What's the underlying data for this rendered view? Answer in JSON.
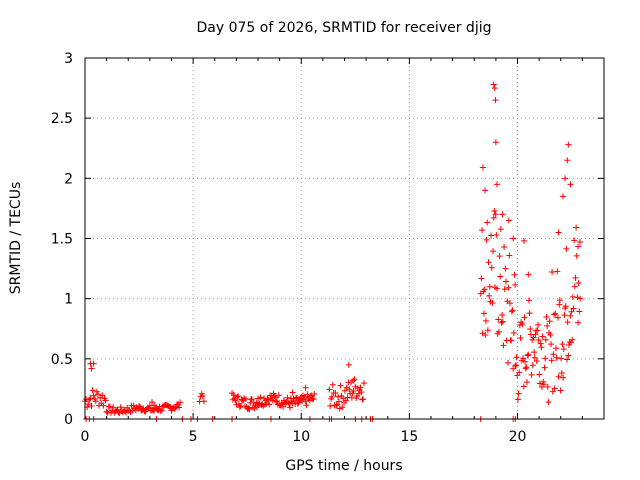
{
  "chart_data": {
    "type": "scatter",
    "title": "Day 075 of 2026, SRMTID for receiver djig",
    "xlabel": "GPS time / hours",
    "ylabel": "SRMTID / TECUs",
    "xlim": [
      0,
      24
    ],
    "ylim": [
      0,
      3
    ],
    "xticks": [
      0,
      5,
      10,
      15,
      20
    ],
    "xtick_labels": [
      "0",
      "5",
      "10",
      "15",
      "20"
    ],
    "yticks": [
      0,
      0.5,
      1,
      1.5,
      2,
      2.5,
      3
    ],
    "ytick_labels": [
      "0",
      "0.5",
      "1",
      "1.5",
      "2",
      "2.5",
      "3"
    ],
    "grid": true,
    "marker": "+",
    "series": [
      {
        "name": "SRMTID",
        "color": "#ff0000",
        "segments": [
          {
            "start": 0.0,
            "end": 1.0,
            "base": 0.15,
            "amp": 0.08,
            "step": 0.05
          },
          {
            "start": 1.0,
            "end": 3.2,
            "base": 0.08,
            "amp": 0.03,
            "step": 0.05
          },
          {
            "start": 3.2,
            "end": 4.4,
            "base": 0.1,
            "amp": 0.03,
            "step": 0.05
          },
          {
            "start": 5.3,
            "end": 5.5,
            "base": 0.22,
            "amp": 0.06,
            "step": 0.05
          },
          {
            "start": 6.8,
            "end": 10.6,
            "base": 0.15,
            "amp": 0.05,
            "step": 0.04
          },
          {
            "start": 11.3,
            "end": 12.9,
            "base": 0.22,
            "amp": 0.1,
            "step": 0.04
          },
          {
            "start": 18.3,
            "end": 19.9,
            "base": 1.05,
            "amp": 0.55,
            "step": 0.03
          },
          {
            "start": 19.9,
            "end": 21.6,
            "base": 0.55,
            "amp": 0.35,
            "step": 0.03
          },
          {
            "start": 21.6,
            "end": 22.9,
            "base": 0.95,
            "amp": 0.55,
            "step": 0.03
          }
        ],
        "extra_points": [
          [
            0.25,
            0.46
          ],
          [
            0.3,
            0.42
          ],
          [
            0.4,
            0.46
          ],
          [
            3.1,
            0.14
          ],
          [
            8.0,
            0.17
          ],
          [
            9.6,
            0.22
          ],
          [
            10.2,
            0.26
          ],
          [
            12.2,
            0.45
          ],
          [
            12.4,
            0.32
          ],
          [
            18.4,
            2.09
          ],
          [
            18.5,
            1.9
          ],
          [
            18.9,
            2.78
          ],
          [
            18.95,
            2.75
          ],
          [
            18.98,
            2.65
          ],
          [
            19.0,
            2.3
          ],
          [
            19.05,
            1.95
          ],
          [
            19.3,
            1.7
          ],
          [
            19.6,
            1.65
          ],
          [
            19.8,
            1.5
          ],
          [
            20.3,
            1.48
          ],
          [
            20.5,
            1.2
          ],
          [
            21.9,
            1.55
          ],
          [
            22.1,
            1.85
          ],
          [
            22.2,
            2.0
          ],
          [
            22.3,
            2.15
          ],
          [
            22.35,
            2.28
          ],
          [
            22.45,
            1.95
          ],
          [
            22.9,
            1.0
          ],
          [
            22.8,
            0.8
          ]
        ],
        "zero_points": [
          0.05,
          0.2,
          0.4,
          3.3,
          4.5,
          4.9,
          5.2,
          5.9,
          6.8,
          8.6,
          10.4,
          11.3,
          11.4,
          12.5,
          12.8,
          13.2,
          13.3,
          18.3,
          19.8,
          19.9
        ]
      }
    ]
  }
}
